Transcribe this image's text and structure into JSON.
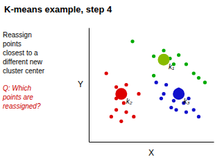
{
  "chart_data": {
    "type": "scatter",
    "title": "K-means example, step 4",
    "x_label": "X",
    "y_label": "Y",
    "xlim": [
      0,
      1
    ],
    "ylim": [
      0,
      1
    ],
    "xticks": [],
    "yticks": [],
    "tick_labels": false,
    "series": [
      {
        "color": "#00aa00",
        "marker": "circle",
        "x": [
          0.35,
          0.52,
          0.6,
          0.65,
          0.72,
          0.68,
          0.78,
          0.84,
          0.88,
          0.93,
          0.52
        ],
        "values": [
          0.88,
          0.75,
          0.8,
          0.73,
          0.76,
          0.68,
          0.68,
          0.6,
          0.56,
          0.52,
          0.58
        ]
      },
      {
        "color": "#dd0000",
        "marker": "circle",
        "x": [
          0.14,
          0.22,
          0.3,
          0.22,
          0.28,
          0.22,
          0.3,
          0.36,
          0.18,
          0.26,
          0.4
        ],
        "values": [
          0.6,
          0.48,
          0.5,
          0.38,
          0.34,
          0.28,
          0.26,
          0.22,
          0.22,
          0.18,
          0.42
        ]
      },
      {
        "color": "#1111cc",
        "marker": "circle",
        "x": [
          0.54,
          0.62,
          0.72,
          0.6,
          0.68,
          0.66,
          0.76,
          0.8,
          0.84,
          0.88,
          0.78,
          0.7,
          0.58
        ],
        "values": [
          0.52,
          0.5,
          0.46,
          0.42,
          0.36,
          0.3,
          0.34,
          0.38,
          0.28,
          0.22,
          0.26,
          0.28,
          0.38
        ]
      }
    ],
    "centers": {
      "x": [
        0.6,
        0.26,
        0.72
      ],
      "y": [
        0.72,
        0.42,
        0.42
      ],
      "colors": [
        "#88bb00",
        "#dd0000",
        "#1111cc"
      ],
      "labels": [
        "k₁",
        "k₂",
        "k₃"
      ]
    },
    "annotations": [
      {
        "text": "Reassign"
      },
      {
        "text": "points"
      },
      {
        "text": "closest to a"
      },
      {
        "text": "different new"
      },
      {
        "text": "cluster center"
      },
      {
        "text": "Q: Which\npoints are\nreassigned?",
        "color": "#cc0000"
      }
    ]
  }
}
